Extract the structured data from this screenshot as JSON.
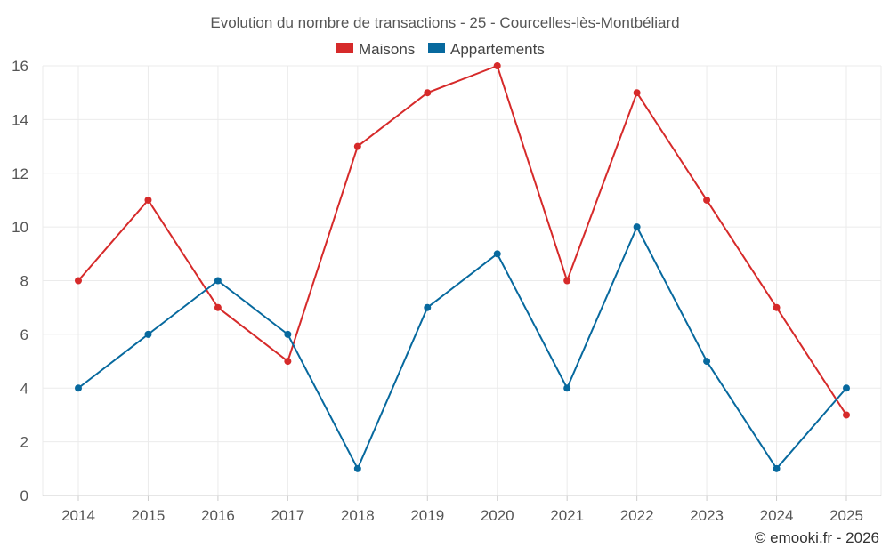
{
  "chart_data": {
    "type": "line",
    "title": "Evolution du nombre de transactions - 25 - Courcelles-lès-Montbéliard",
    "categories": [
      "2014",
      "2015",
      "2016",
      "2017",
      "2018",
      "2019",
      "2020",
      "2021",
      "2022",
      "2023",
      "2024",
      "2025"
    ],
    "series": [
      {
        "name": "Maisons",
        "color": "#d62a2a",
        "values": [
          8,
          11,
          7,
          5,
          13,
          15,
          16,
          8,
          15,
          11,
          7,
          3
        ]
      },
      {
        "name": "Appartements",
        "color": "#07699e",
        "values": [
          4,
          6,
          8,
          6,
          1,
          7,
          9,
          4,
          10,
          5,
          1,
          4
        ]
      }
    ],
    "ylim": [
      0,
      16
    ],
    "yticks": [
      0,
      2,
      4,
      6,
      8,
      10,
      12,
      14,
      16
    ],
    "xlabel": "",
    "ylabel": "",
    "grid": true,
    "legend": "top-center"
  },
  "credit": "© emooki.fr - 2026"
}
